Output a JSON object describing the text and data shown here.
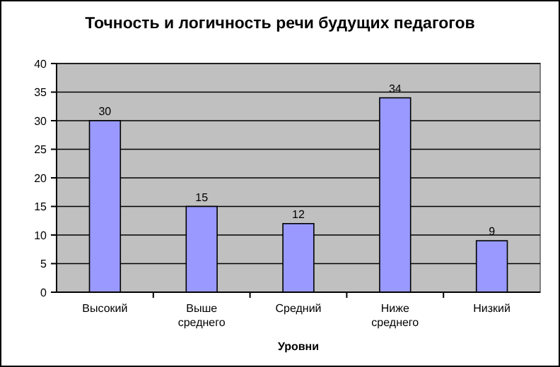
{
  "chart_data": {
    "type": "bar",
    "title": "Точность и логичность речи будущих педагогов",
    "xlabel": "Уровни",
    "categories": [
      "Высокий",
      "Выше среднего",
      "Средний",
      "Ниже среднего",
      "Низкий"
    ],
    "values": [
      30,
      15,
      12,
      34,
      9
    ],
    "color": "#9999ff",
    "ylim": [
      0,
      40
    ],
    "yticks": [
      0,
      5,
      10,
      15,
      20,
      25,
      30,
      35,
      40
    ],
    "grid": "y",
    "data_labels": true
  }
}
